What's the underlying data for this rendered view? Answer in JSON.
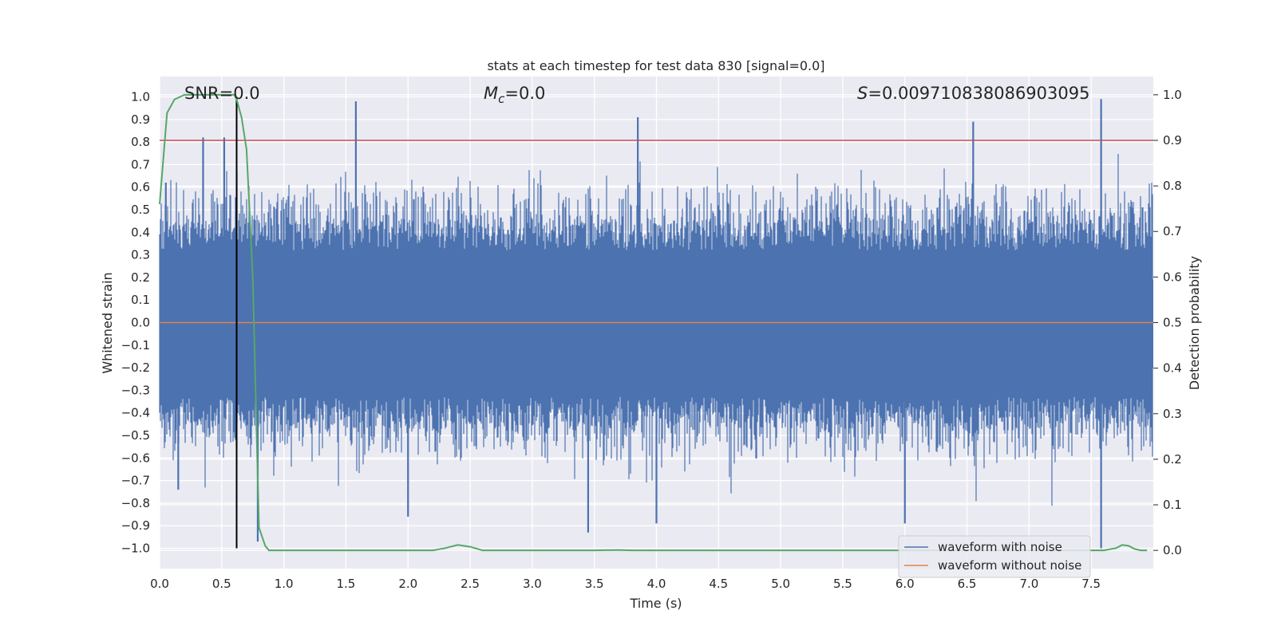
{
  "chart_data": {
    "type": "line",
    "title": "stats at each timestep for test data 830 [signal=0.0]",
    "xlabel": "Time (s)",
    "ylabel_left": "Whitened strain",
    "ylabel_right": "Detection probability",
    "xlim": [
      0.0,
      8.0
    ],
    "ylim_left": [
      -1.09,
      1.09
    ],
    "ylim_right": [
      -0.04,
      1.04
    ],
    "x_ticks": [
      "0.0",
      "0.5",
      "1.0",
      "1.5",
      "2.0",
      "2.5",
      "3.0",
      "3.5",
      "4.0",
      "4.5",
      "5.0",
      "5.5",
      "6.0",
      "6.5",
      "7.0",
      "7.5"
    ],
    "y_ticks_left": [
      "1.0",
      "0.9",
      "0.8",
      "0.7",
      "0.6",
      "0.5",
      "0.4",
      "0.3",
      "0.2",
      "0.1",
      "0.0",
      "−0.1",
      "−0.2",
      "−0.3",
      "−0.4",
      "−0.5",
      "−0.6",
      "−0.7",
      "−0.8",
      "−0.9",
      "−1.0"
    ],
    "y_ticks_right": [
      "1.0",
      "0.9",
      "0.8",
      "0.7",
      "0.6",
      "0.5",
      "0.4",
      "0.3",
      "0.2",
      "0.1",
      "0.0"
    ],
    "annotations": {
      "snr": "SNR=0.0",
      "mc_symbol": "M",
      "mc_sub": "c",
      "mc_value": "=0.0",
      "s_symbol": "S",
      "s_value": "=0.009710838086903095"
    },
    "threshold_prob": 0.9,
    "vline_time": 0.62,
    "legend": [
      "waveform with noise",
      "waveform without noise"
    ],
    "series": [
      {
        "name": "waveform with noise",
        "color": "#4c72b0",
        "description": "whitened strain noise, approx. range -1.0 to 0.98",
        "peak_markers": [
          {
            "x": 0.05,
            "y": 0.62
          },
          {
            "x": 0.35,
            "y": 0.82
          },
          {
            "x": 0.52,
            "y": 0.82
          },
          {
            "x": 1.58,
            "y": 0.98
          },
          {
            "x": 3.85,
            "y": 0.91
          },
          {
            "x": 6.55,
            "y": 0.89
          },
          {
            "x": 7.58,
            "y": 0.99
          },
          {
            "x": 0.15,
            "y": -0.74
          },
          {
            "x": 0.79,
            "y": -0.97
          },
          {
            "x": 2.0,
            "y": -0.86
          },
          {
            "x": 3.45,
            "y": -0.93
          },
          {
            "x": 4.0,
            "y": -0.89
          },
          {
            "x": 6.0,
            "y": -0.89
          },
          {
            "x": 7.58,
            "y": -1.0
          }
        ]
      },
      {
        "name": "waveform without noise",
        "color": "#dd8452",
        "values": "constant 0.0"
      },
      {
        "name": "detection probability",
        "color": "#55a868",
        "axis": "right",
        "x": [
          0.0,
          0.06,
          0.12,
          0.2,
          0.3,
          0.4,
          0.5,
          0.6,
          0.62,
          0.66,
          0.7,
          0.75,
          0.8,
          0.85,
          0.88,
          1.0,
          1.5,
          2.0,
          2.2,
          2.3,
          2.4,
          2.5,
          2.6,
          2.7,
          3.0,
          3.5,
          3.7,
          3.8,
          4.0,
          5.0,
          6.0,
          7.0,
          7.5,
          7.6,
          7.7,
          7.75,
          7.8,
          7.85,
          7.9,
          7.95
        ],
        "y": [
          0.76,
          0.96,
          0.99,
          1.0,
          1.0,
          1.0,
          1.0,
          1.0,
          0.99,
          0.95,
          0.88,
          0.6,
          0.05,
          0.01,
          0.0,
          0.0,
          0.0,
          0.0,
          0.0,
          0.005,
          0.012,
          0.008,
          0.0,
          0.0,
          0.0,
          0.0,
          0.001,
          0.0,
          0.0,
          0.0,
          0.0,
          0.0,
          0.0,
          0.0,
          0.005,
          0.012,
          0.01,
          0.003,
          0.0,
          0.0
        ]
      }
    ]
  }
}
